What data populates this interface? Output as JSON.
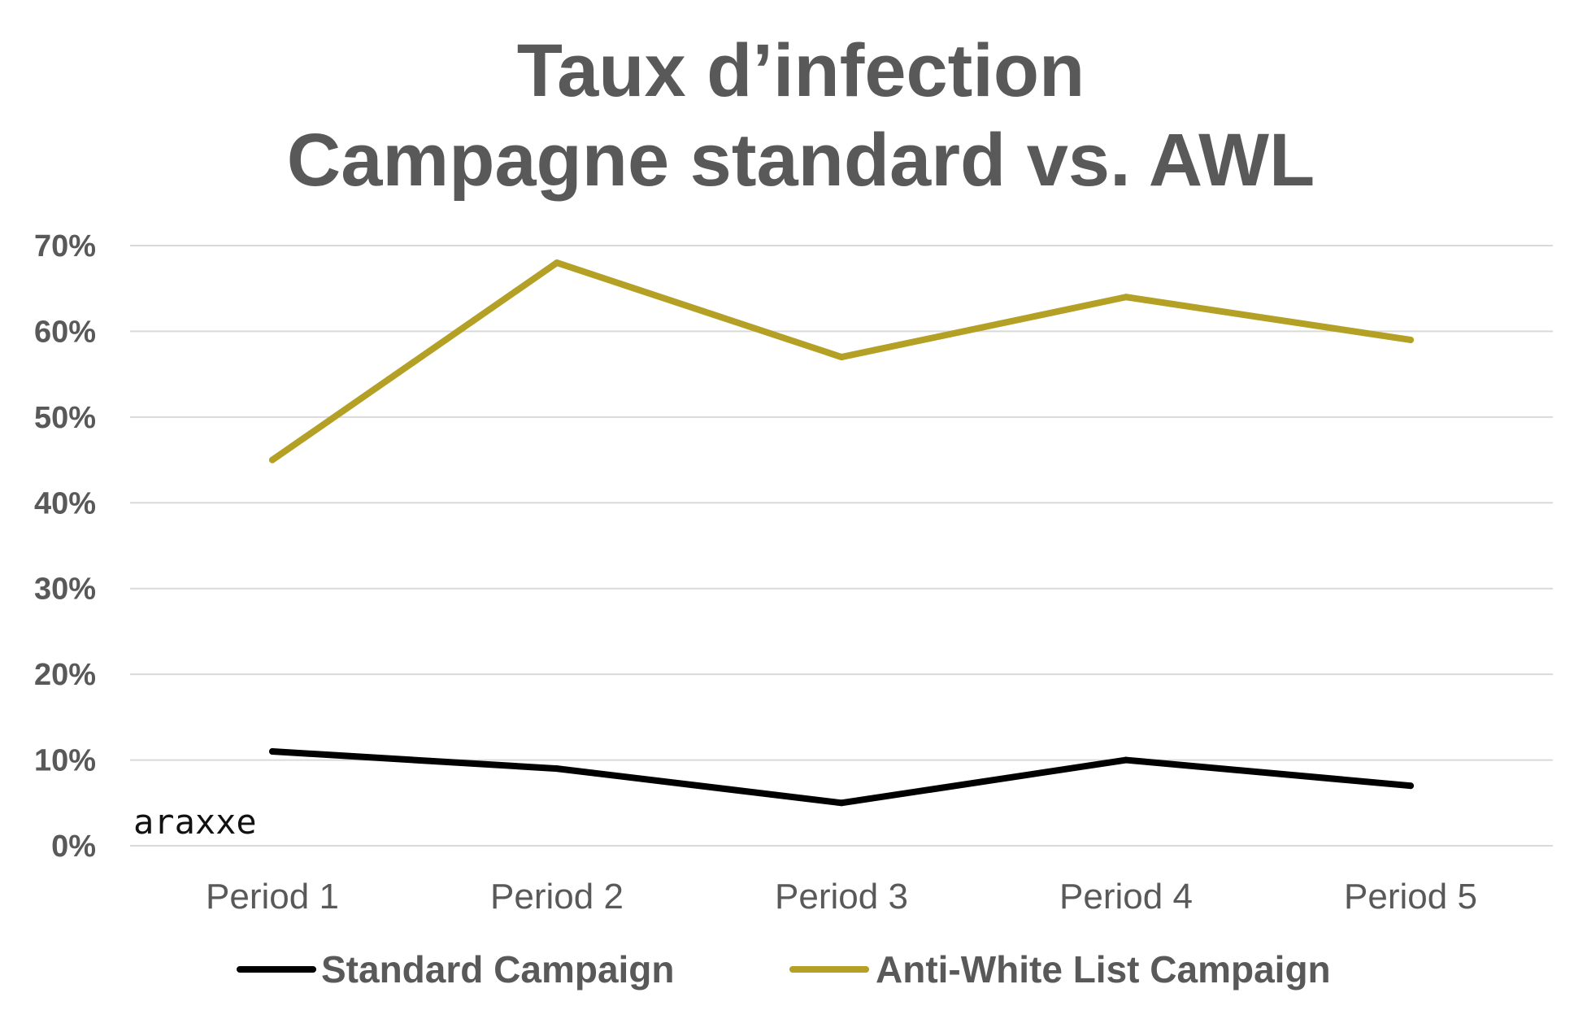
{
  "chart_data": {
    "type": "line",
    "title": [
      "Taux d’infection",
      "Campagne standard vs. AWL"
    ],
    "categories": [
      "Period 1",
      "Period 2",
      "Period 3",
      "Period 4",
      "Period 5"
    ],
    "series": [
      {
        "name": "Standard Campaign",
        "color": "#000000",
        "values": [
          0.11,
          0.09,
          0.05,
          0.1,
          0.07
        ]
      },
      {
        "name": "Anti-White List Campaign",
        "color": "#b3a025",
        "values": [
          0.45,
          0.68,
          0.57,
          0.64,
          0.59
        ]
      }
    ],
    "ylim": [
      0,
      0.7
    ],
    "yticks": [
      0,
      0.1,
      0.2,
      0.3,
      0.4,
      0.5,
      0.6,
      0.7
    ],
    "ytick_labels": [
      "0%",
      "10%",
      "20%",
      "30%",
      "40%",
      "50%",
      "60%",
      "70%"
    ],
    "grid": true,
    "legend": "bottom",
    "watermark": "araxxe"
  }
}
